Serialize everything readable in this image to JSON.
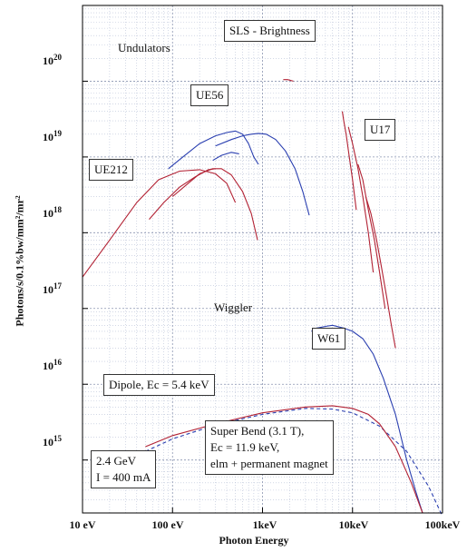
{
  "chart_data": {
    "type": "line",
    "title": "SLS - Brightness",
    "xlabel": "Photon Energy",
    "ylabel": "Photons/s/0.1%bw/mm²/mr²",
    "xscale": "log",
    "yscale": "log",
    "xlim": [
      10,
      100000
    ],
    "ylim": [
      200000000000000.0,
      1e+21
    ],
    "xticks": [
      {
        "value": 10,
        "label": "10 eV"
      },
      {
        "value": 100,
        "label": "100 eV"
      },
      {
        "value": 1000,
        "label": "1keV"
      },
      {
        "value": 10000,
        "label": "10keV"
      },
      {
        "value": 100000,
        "label": "100keV"
      }
    ],
    "yticks": [
      {
        "value": 1000000000000000.0,
        "base": "10",
        "exp": "15"
      },
      {
        "value": 1e+16,
        "base": "10",
        "exp": "16"
      },
      {
        "value": 1e+17,
        "base": "10",
        "exp": "17"
      },
      {
        "value": 1e+18,
        "base": "10",
        "exp": "18"
      },
      {
        "value": 1e+19,
        "base": "10",
        "exp": "19"
      },
      {
        "value": 1e+20,
        "base": "10",
        "exp": "20"
      }
    ],
    "grid": true,
    "annotations": {
      "title_box": "SLS - Brightness",
      "undulators": "Undulators",
      "ue56": "UE56",
      "u17": "U17",
      "ue212": "UE212",
      "wiggler": "Wiggler",
      "w61": "W61",
      "dipole": "Dipole, Ec = 5.4 keV",
      "superbend_1": "Super Bend (3.1 T),",
      "superbend_2": "Ec = 11.9 keV,",
      "superbend_3": "elm + permanent magnet",
      "machine_1": "2.4 GeV",
      "machine_2": "I = 400 mA"
    },
    "series": [
      {
        "id": "ue212-a",
        "color": "#b22234",
        "dash": false,
        "x": [
          10,
          20,
          40,
          70,
          120,
          200,
          300,
          400,
          500
        ],
        "y": [
          2.6e+17,
          8e+17,
          2.5e+18,
          5e+18,
          6.5e+18,
          6.8e+18,
          6e+18,
          4.5e+18,
          2.5e+18
        ]
      },
      {
        "id": "ue212-b",
        "color": "#b22234",
        "dash": false,
        "x": [
          100,
          150,
          200,
          280,
          350,
          450,
          600,
          750,
          880
        ],
        "y": [
          3e+18,
          4.5e+18,
          6e+18,
          7e+18,
          7e+18,
          5.8e+18,
          3.5e+18,
          1.8e+18,
          8e+17
        ]
      },
      {
        "id": "ue212-c",
        "color": "#b22234",
        "dash": false,
        "x": [
          55,
          80,
          120,
          180,
          250,
          300
        ],
        "y": [
          1.5e+18,
          2.5e+18,
          4e+18,
          5.5e+18,
          6.8e+18,
          7e+18
        ]
      },
      {
        "id": "ue56-a",
        "color": "#2a3fb0",
        "dash": false,
        "x": [
          90,
          130,
          200,
          300,
          400,
          500,
          600,
          700,
          800,
          900
        ],
        "y": [
          7e+18,
          1e+19,
          1.5e+19,
          1.9e+19,
          2.1e+19,
          2.2e+19,
          2e+19,
          1.5e+19,
          1e+19,
          8e+18
        ]
      },
      {
        "id": "ue56-b",
        "color": "#2a3fb0",
        "dash": false,
        "x": [
          300,
          450,
          600,
          750,
          900,
          1100,
          1400,
          1800,
          2300,
          2800,
          3300
        ],
        "y": [
          1.4e+19,
          1.7e+19,
          1.9e+19,
          2e+19,
          2.05e+19,
          2e+19,
          1.7e+19,
          1.2e+19,
          7e+18,
          3.5e+18,
          1.7e+18
        ]
      },
      {
        "id": "ue56-c",
        "color": "#2a3fb0",
        "dash": false,
        "x": [
          280,
          350,
          450,
          550
        ],
        "y": [
          9e+18,
          1.05e+19,
          1.15e+19,
          1.1e+19
        ]
      },
      {
        "id": "u17-top",
        "color": "#b22234",
        "dash": false,
        "x": [
          1700,
          1900,
          2200
        ],
        "y": [
          1.05e+20,
          1.05e+20,
          1e+20
        ]
      },
      {
        "id": "u17-a",
        "color": "#b22234",
        "dash": false,
        "x": [
          7700,
          8000,
          8500,
          9200,
          10000,
          11000
        ],
        "y": [
          4e+19,
          3e+19,
          2e+19,
          1e+19,
          5e+18,
          2e+18
        ]
      },
      {
        "id": "u17-b",
        "color": "#b22234",
        "dash": false,
        "x": [
          9000,
          10000,
          11500,
          13000,
          15000,
          17000
        ],
        "y": [
          2.5e+19,
          1.5e+19,
          7e+18,
          3e+18,
          1e+18,
          3e+17
        ]
      },
      {
        "id": "u17-c",
        "color": "#b22234",
        "dash": false,
        "x": [
          11500,
          13000,
          15000,
          17500,
          20000,
          23000
        ],
        "y": [
          8e+18,
          5e+18,
          2e+18,
          8e+17,
          3e+17,
          1e+17
        ]
      },
      {
        "id": "u17-d",
        "color": "#b22234",
        "dash": false,
        "x": [
          14000,
          16000,
          18500,
          21000,
          24000,
          27000,
          30000
        ],
        "y": [
          3e+18,
          1.8e+18,
          8e+17,
          3.5e+17,
          1.4e+17,
          6e+16,
          3e+16
        ]
      },
      {
        "id": "w61",
        "color": "#2a3fb0",
        "dash": false,
        "x": [
          3500,
          4000,
          5000,
          6000,
          8000,
          10000,
          13000,
          17000,
          22000,
          30000,
          40000,
          50000,
          60000
        ],
        "y": [
          5e+16,
          5.5e+16,
          5.8e+16,
          6e+16,
          5.5e+16,
          5e+16,
          4e+16,
          2.5e+16,
          1.2e+16,
          4000000000000000.0,
          1000000000000000.0,
          400000000000000.0,
          200000000000000.0
        ]
      },
      {
        "id": "dipole",
        "color": "#2a3fb0",
        "dash": true,
        "x": [
          50,
          100,
          300,
          1000,
          3000,
          6000,
          10000,
          20000,
          40000,
          70000,
          100000
        ],
        "y": [
          1300000000000000.0,
          1900000000000000.0,
          2900000000000000.0,
          4000000000000000.0,
          4800000000000000.0,
          4700000000000000.0,
          4200000000000000.0,
          2800000000000000.0,
          1300000000000000.0,
          450000000000000.0,
          180000000000000.0
        ]
      },
      {
        "id": "superbend",
        "color": "#b22234",
        "dash": false,
        "x": [
          50,
          100,
          300,
          1000,
          3000,
          6000,
          10000,
          15000,
          20000,
          30000,
          45000,
          60000
        ],
        "y": [
          1500000000000000.0,
          2100000000000000.0,
          3000000000000000.0,
          4200000000000000.0,
          5000000000000000.0,
          5200000000000000.0,
          4800000000000000.0,
          4000000000000000.0,
          3000000000000000.0,
          1500000000000000.0,
          500000000000000.0,
          200000000000000.0
        ]
      }
    ]
  }
}
